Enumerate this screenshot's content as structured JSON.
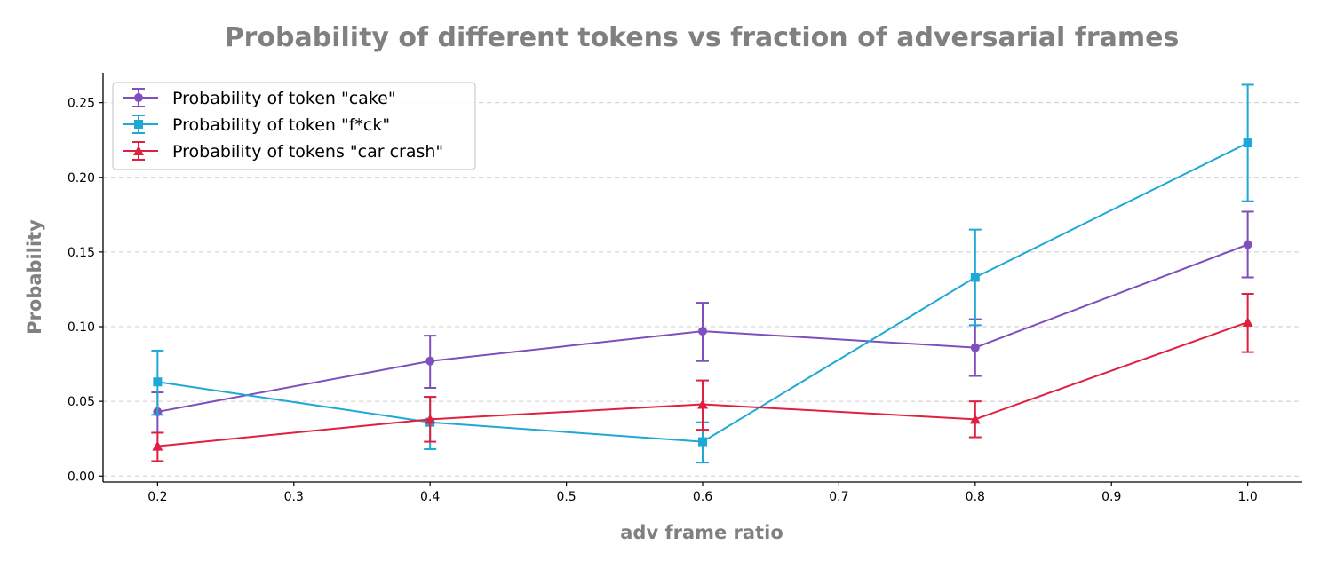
{
  "chart_data": {
    "type": "line",
    "title": "Probability of different tokens vs fraction of adversarial frames",
    "xlabel": "adv frame ratio",
    "ylabel": "Probability",
    "xlim": [
      0.16,
      1.04
    ],
    "ylim": [
      -0.004,
      0.27
    ],
    "xticks": [
      0.2,
      0.3,
      0.4,
      0.5,
      0.6,
      0.7,
      0.8,
      0.9,
      1.0
    ],
    "xtick_labels": [
      "0.2",
      "0.3",
      "0.4",
      "0.5",
      "0.6",
      "0.7",
      "0.8",
      "0.9",
      "1.0"
    ],
    "yticks": [
      0.0,
      0.05,
      0.1,
      0.15,
      0.2,
      0.25
    ],
    "ytick_labels": [
      "0.00",
      "0.05",
      "0.10",
      "0.15",
      "0.20",
      "0.25"
    ],
    "grid": "y-dashed",
    "legend_position": "top-left",
    "x": [
      0.2,
      0.4,
      0.6,
      0.8,
      1.0
    ],
    "series": [
      {
        "name": "Probability of token \"cake\"",
        "color": "#7e4fbd",
        "marker": "circle",
        "values": [
          0.043,
          0.077,
          0.097,
          0.086,
          0.155
        ],
        "err_low": [
          0.029,
          0.059,
          0.077,
          0.067,
          0.133
        ],
        "err_high": [
          0.056,
          0.094,
          0.116,
          0.105,
          0.177
        ]
      },
      {
        "name": "Probability of token \"f*ck\"",
        "color": "#1ea8d6",
        "marker": "square",
        "values": [
          0.063,
          0.036,
          0.023,
          0.133,
          0.223
        ],
        "err_low": [
          0.041,
          0.018,
          0.009,
          0.101,
          0.184
        ],
        "err_high": [
          0.084,
          0.053,
          0.036,
          0.165,
          0.262
        ]
      },
      {
        "name": "Probability of tokens \"car crash\"",
        "color": "#e0203f",
        "marker": "triangle",
        "values": [
          0.02,
          0.038,
          0.048,
          0.038,
          0.103
        ],
        "err_low": [
          0.01,
          0.023,
          0.031,
          0.026,
          0.083
        ],
        "err_high": [
          0.029,
          0.053,
          0.064,
          0.05,
          0.122
        ]
      }
    ]
  }
}
